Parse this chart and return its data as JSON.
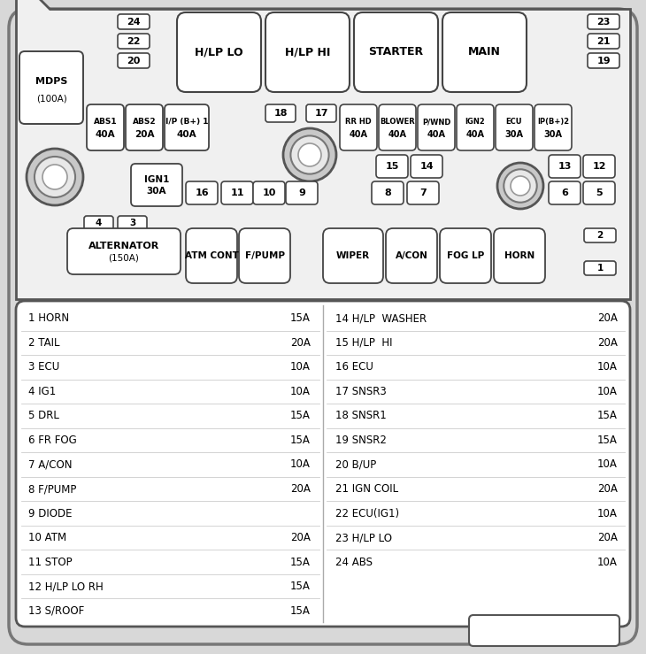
{
  "left_entries": [
    [
      "1 HORN",
      "15A"
    ],
    [
      "2 TAIL",
      "20A"
    ],
    [
      "3 ECU",
      "10A"
    ],
    [
      "4 IG1",
      "10A"
    ],
    [
      "5 DRL",
      "15A"
    ],
    [
      "6 FR FOG",
      "15A"
    ],
    [
      "7 A/CON",
      "10A"
    ],
    [
      "8 F/PUMP",
      "20A"
    ],
    [
      "9 DIODE",
      ""
    ],
    [
      "10 ATM",
      "20A"
    ],
    [
      "11 STOP",
      "15A"
    ],
    [
      "12 H/LP LO RH",
      "15A"
    ],
    [
      "13 S/ROOF",
      "15A"
    ]
  ],
  "right_entries": [
    [
      "14 H/LP  WASHER",
      "20A"
    ],
    [
      "15 H/LP  HI",
      "20A"
    ],
    [
      "16 ECU",
      "10A"
    ],
    [
      "17 SNSR3",
      "10A"
    ],
    [
      "18 SNSR1",
      "15A"
    ],
    [
      "19 SNSR2",
      "15A"
    ],
    [
      "20 B/UP",
      "10A"
    ],
    [
      "21 IGN COIL",
      "20A"
    ],
    [
      "22 ECU(IG1)",
      "10A"
    ],
    [
      "23 H/LP LO",
      "20A"
    ],
    [
      "24 ABS",
      "10A"
    ]
  ]
}
